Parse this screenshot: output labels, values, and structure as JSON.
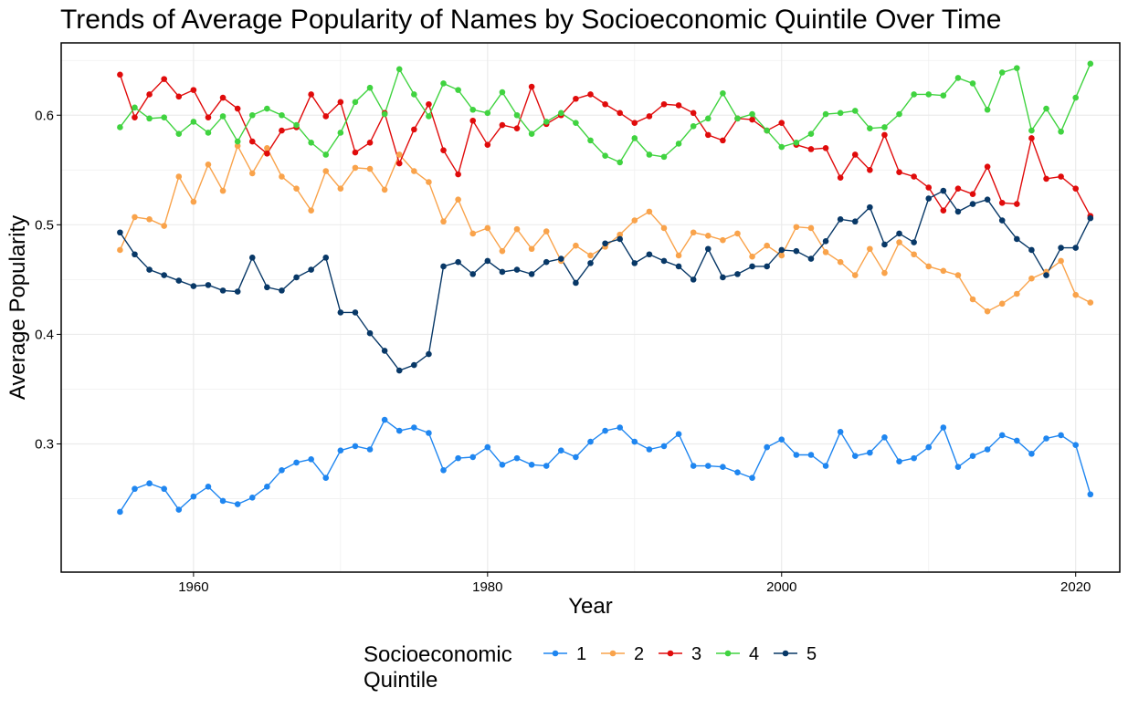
{
  "chart_data": {
    "type": "line",
    "title": "Trends of Average Popularity of Names by Socioeconomic Quintile Over Time",
    "xlabel": "Year",
    "ylabel": "Average Popularity",
    "xlim": [
      1951,
      2023
    ],
    "ylim": [
      0.183,
      0.666
    ],
    "x_ticks": [
      1960,
      1980,
      2000,
      2020
    ],
    "y_ticks": [
      0.3,
      0.4,
      0.5,
      0.6
    ],
    "y_tick_labels": [
      "0.3",
      "0.4",
      "0.5",
      "0.6"
    ],
    "grid": true,
    "legend": {
      "title": "Socioeconomic Quintile",
      "title_lines": [
        "Socioeconomic",
        "Quintile"
      ],
      "position": "bottom"
    },
    "x": [
      1955,
      1956,
      1957,
      1958,
      1959,
      1960,
      1961,
      1962,
      1963,
      1964,
      1965,
      1966,
      1967,
      1968,
      1969,
      1970,
      1971,
      1972,
      1973,
      1974,
      1975,
      1976,
      1977,
      1978,
      1979,
      1980,
      1981,
      1982,
      1983,
      1984,
      1985,
      1986,
      1987,
      1988,
      1989,
      1990,
      1991,
      1992,
      1993,
      1994,
      1995,
      1996,
      1997,
      1998,
      1999,
      2000,
      2001,
      2002,
      2003,
      2004,
      2005,
      2006,
      2007,
      2008,
      2009,
      2010,
      2011,
      2012,
      2013,
      2014,
      2015,
      2016,
      2017,
      2018,
      2019,
      2020,
      2021
    ],
    "series": [
      {
        "name": "1",
        "color": "#1f86f0",
        "values": [
          0.238,
          0.259,
          0.264,
          0.259,
          0.24,
          0.252,
          0.261,
          0.248,
          0.245,
          0.251,
          0.261,
          0.276,
          0.283,
          0.286,
          0.269,
          0.294,
          0.298,
          0.295,
          0.322,
          0.312,
          0.315,
          0.31,
          0.276,
          0.287,
          0.288,
          0.297,
          0.281,
          0.287,
          0.281,
          0.28,
          0.294,
          0.288,
          0.302,
          0.312,
          0.315,
          0.302,
          0.295,
          0.298,
          0.309,
          0.28,
          0.28,
          0.279,
          0.274,
          0.269,
          0.297,
          0.304,
          0.29,
          0.29,
          0.28,
          0.311,
          0.289,
          0.292,
          0.306,
          0.284,
          0.287,
          0.297,
          0.315,
          0.279,
          0.289,
          0.295,
          0.308,
          0.303,
          0.291,
          0.305,
          0.308,
          0.299,
          0.254
        ]
      },
      {
        "name": "2",
        "color": "#f9a34b",
        "values": [
          0.477,
          0.507,
          0.505,
          0.499,
          0.544,
          0.521,
          0.555,
          0.531,
          0.572,
          0.547,
          0.57,
          0.544,
          0.533,
          0.513,
          0.549,
          0.533,
          0.552,
          0.551,
          0.532,
          0.564,
          0.549,
          0.539,
          0.503,
          0.523,
          0.492,
          0.497,
          0.476,
          0.496,
          0.478,
          0.494,
          0.467,
          0.481,
          0.472,
          0.48,
          0.491,
          0.504,
          0.512,
          0.497,
          0.472,
          0.493,
          0.49,
          0.486,
          0.492,
          0.471,
          0.481,
          0.472,
          0.498,
          0.497,
          0.475,
          0.466,
          0.454,
          0.478,
          0.456,
          0.484,
          0.473,
          0.462,
          0.458,
          0.454,
          0.432,
          0.421,
          0.428,
          0.437,
          0.451,
          0.457,
          0.467,
          0.436,
          0.429
        ]
      },
      {
        "name": "3",
        "color": "#e00b0b",
        "values": [
          0.637,
          0.598,
          0.619,
          0.633,
          0.617,
          0.623,
          0.598,
          0.616,
          0.606,
          0.576,
          0.565,
          0.586,
          0.589,
          0.619,
          0.599,
          0.612,
          0.566,
          0.575,
          0.602,
          0.556,
          0.587,
          0.61,
          0.568,
          0.546,
          0.595,
          0.573,
          0.591,
          0.588,
          0.626,
          0.592,
          0.6,
          0.615,
          0.619,
          0.61,
          0.602,
          0.593,
          0.599,
          0.61,
          0.609,
          0.602,
          0.582,
          0.577,
          0.597,
          0.596,
          0.586,
          0.593,
          0.573,
          0.569,
          0.57,
          0.543,
          0.564,
          0.55,
          0.582,
          0.548,
          0.544,
          0.534,
          0.513,
          0.533,
          0.528,
          0.553,
          0.52,
          0.519,
          0.579,
          0.542,
          0.544,
          0.533,
          0.508
        ]
      },
      {
        "name": "4",
        "color": "#40d340",
        "values": [
          0.589,
          0.607,
          0.597,
          0.598,
          0.583,
          0.594,
          0.584,
          0.599,
          0.576,
          0.6,
          0.606,
          0.6,
          0.591,
          0.575,
          0.564,
          0.584,
          0.612,
          0.625,
          0.601,
          0.642,
          0.619,
          0.599,
          0.629,
          0.623,
          0.605,
          0.602,
          0.621,
          0.6,
          0.583,
          0.594,
          0.602,
          0.593,
          0.577,
          0.563,
          0.557,
          0.579,
          0.564,
          0.562,
          0.574,
          0.59,
          0.597,
          0.62,
          0.597,
          0.601,
          0.586,
          0.571,
          0.575,
          0.583,
          0.601,
          0.602,
          0.604,
          0.588,
          0.589,
          0.601,
          0.619,
          0.619,
          0.618,
          0.634,
          0.629,
          0.605,
          0.639,
          0.643,
          0.586,
          0.606,
          0.585,
          0.616,
          0.647
        ]
      },
      {
        "name": "5",
        "color": "#083867",
        "values": [
          0.493,
          0.473,
          0.459,
          0.454,
          0.449,
          0.444,
          0.445,
          0.44,
          0.439,
          0.47,
          0.443,
          0.44,
          0.452,
          0.459,
          0.47,
          0.42,
          0.42,
          0.401,
          0.385,
          0.367,
          0.372,
          0.382,
          0.462,
          0.466,
          0.455,
          0.467,
          0.457,
          0.459,
          0.455,
          0.466,
          0.469,
          0.447,
          0.465,
          0.483,
          0.487,
          0.465,
          0.473,
          0.467,
          0.462,
          0.45,
          0.478,
          0.452,
          0.455,
          0.462,
          0.462,
          0.477,
          0.476,
          0.469,
          0.485,
          0.505,
          0.503,
          0.516,
          0.482,
          0.492,
          0.484,
          0.524,
          0.531,
          0.512,
          0.519,
          0.523,
          0.504,
          0.487,
          0.477,
          0.454,
          0.479,
          0.479,
          0.506
        ]
      }
    ]
  }
}
